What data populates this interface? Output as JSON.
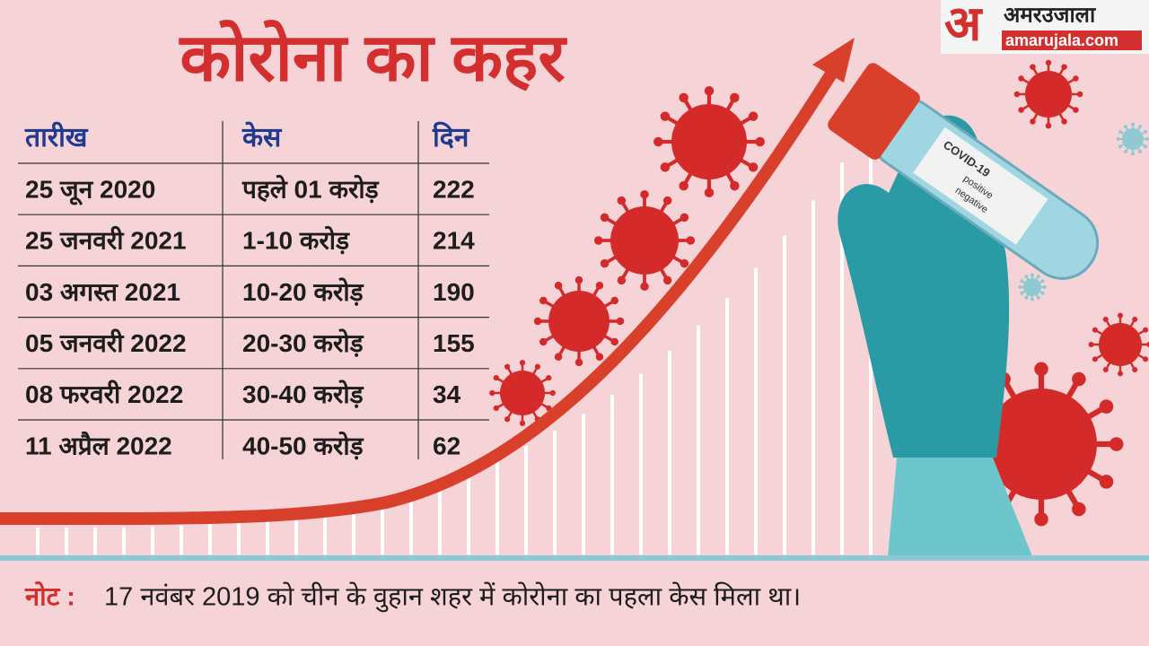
{
  "logo": {
    "mark": "अ",
    "name": "अमरउजाला",
    "site": "amarujala.com"
  },
  "header": {
    "title": "कोरोना का कहर"
  },
  "table": {
    "columns": [
      "तारीख",
      "केस",
      "दिन"
    ],
    "rows": [
      [
        "25 जून 2020",
        "पहले 01 करोड़",
        "222"
      ],
      [
        "25 जनवरी 2021",
        "1-10 करोड़",
        "214"
      ],
      [
        "03 अगस्त 2021",
        "10-20 करोड़",
        "190"
      ],
      [
        "05 जनवरी 2022",
        "20-30 करोड़",
        "155"
      ],
      [
        "08 फरवरी 2022",
        "30-40 करोड़",
        "34"
      ],
      [
        "11 अप्रैल 2022",
        "40-50 करोड़",
        "62"
      ]
    ]
  },
  "tube": {
    "label": "COVID-19",
    "option1": "positive",
    "option2": "negative"
  },
  "note": {
    "prefix": "नोट :",
    "text": "17 नवंबर 2019 को चीन के वुहान शहर में कोरोना का पहला केस मिला था।"
  }
}
